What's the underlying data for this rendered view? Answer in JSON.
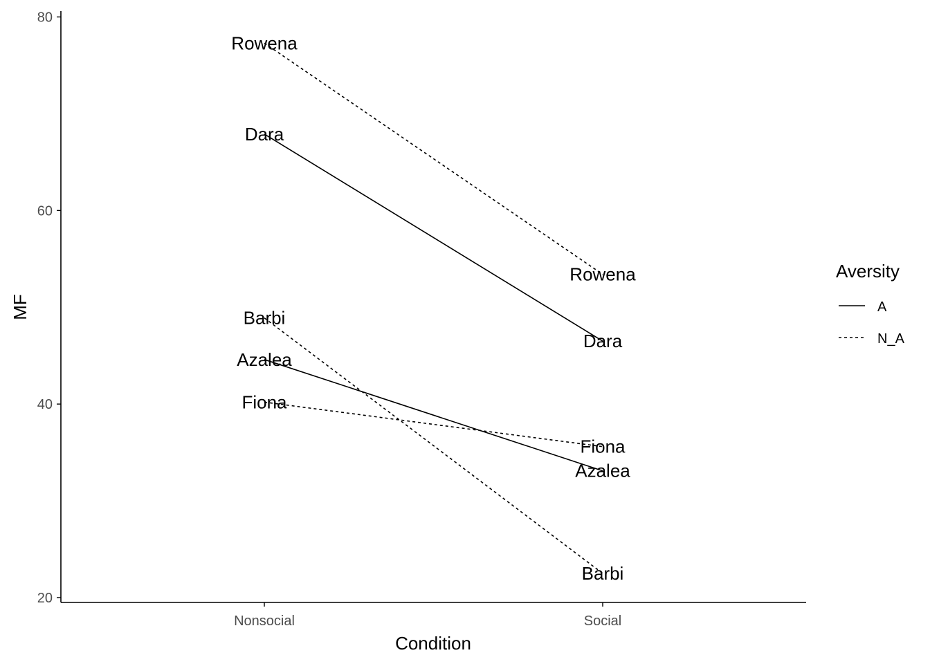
{
  "chart_data": {
    "type": "line",
    "xlabel": "Condition",
    "ylabel": "MF",
    "categories": [
      "Nonsocial",
      "Social"
    ],
    "ylim": [
      19.5,
      81
    ],
    "yticks": [
      20,
      40,
      60,
      80
    ],
    "grid": false,
    "legend": {
      "title": "Aversity",
      "placement": "right",
      "entries": [
        {
          "label": "A",
          "linetype": "solid"
        },
        {
          "label": "N_A",
          "linetype": "dashed"
        }
      ]
    },
    "series": [
      {
        "name": "Rowena",
        "group": "N_A",
        "values": [
          77.3,
          53.4
        ]
      },
      {
        "name": "Dara",
        "group": "A",
        "values": [
          67.9,
          46.5
        ]
      },
      {
        "name": "Barbi",
        "group": "N_A",
        "values": [
          48.9,
          22.5
        ]
      },
      {
        "name": "Azalea",
        "group": "A",
        "values": [
          44.6,
          33.1
        ]
      },
      {
        "name": "Fiona",
        "group": "N_A",
        "values": [
          40.2,
          35.6
        ]
      }
    ]
  }
}
